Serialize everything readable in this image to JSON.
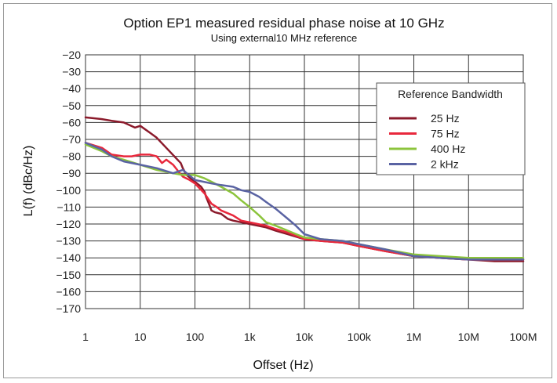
{
  "chart_data": {
    "type": "line",
    "title": "Option EP1 measured residual phase noise at 10 GHz",
    "subtitle": "Using external10 MHz reference",
    "xlabel": "Offset (Hz)",
    "ylabel": "L(f) (dBc/Hz)",
    "x_scale": "log",
    "xlim": [
      1,
      100000000
    ],
    "ylim": [
      -170,
      -20
    ],
    "grid": true,
    "legend_position": "top-right",
    "legend_title": "Reference Bandwidth",
    "x_ticks": [
      {
        "value": 1,
        "label": "1"
      },
      {
        "value": 10,
        "label": "10"
      },
      {
        "value": 100,
        "label": "100"
      },
      {
        "value": 1000,
        "label": "1k"
      },
      {
        "value": 10000,
        "label": "10k"
      },
      {
        "value": 100000,
        "label": "100k"
      },
      {
        "value": 1000000,
        "label": "1M"
      },
      {
        "value": 10000000,
        "label": "10M"
      },
      {
        "value": 100000000,
        "label": "100M"
      }
    ],
    "y_ticks": [
      {
        "value": -20,
        "label": "−20"
      },
      {
        "value": -30,
        "label": "−30"
      },
      {
        "value": -40,
        "label": "−40"
      },
      {
        "value": -50,
        "label": "−50"
      },
      {
        "value": -60,
        "label": "−60"
      },
      {
        "value": -70,
        "label": "−70"
      },
      {
        "value": -80,
        "label": "−80"
      },
      {
        "value": -90,
        "label": "−90"
      },
      {
        "value": -100,
        "label": "−100"
      },
      {
        "value": -110,
        "label": "−110"
      },
      {
        "value": -120,
        "label": "−120"
      },
      {
        "value": -130,
        "label": "−130"
      },
      {
        "value": -140,
        "label": "−140"
      },
      {
        "value": -150,
        "label": "−150"
      },
      {
        "value": -160,
        "label": "−160"
      },
      {
        "value": -170,
        "label": "−170"
      }
    ],
    "series": [
      {
        "name": "25 Hz",
        "color": "#8b1a2b",
        "points": [
          [
            1,
            -57
          ],
          [
            2,
            -58
          ],
          [
            3,
            -59
          ],
          [
            5,
            -60
          ],
          [
            8,
            -63
          ],
          [
            10,
            -62
          ],
          [
            15,
            -66
          ],
          [
            20,
            -69
          ],
          [
            30,
            -75
          ],
          [
            45,
            -81
          ],
          [
            55,
            -84
          ],
          [
            60,
            -87
          ],
          [
            70,
            -91
          ],
          [
            100,
            -95
          ],
          [
            130,
            -98
          ],
          [
            150,
            -101
          ],
          [
            160,
            -104
          ],
          [
            180,
            -108
          ],
          [
            200,
            -112
          ],
          [
            230,
            -113
          ],
          [
            300,
            -114
          ],
          [
            400,
            -117
          ],
          [
            500,
            -118
          ],
          [
            700,
            -119
          ],
          [
            1000,
            -120
          ],
          [
            2000,
            -122
          ],
          [
            3000,
            -124
          ],
          [
            5000,
            -126
          ],
          [
            10000,
            -129
          ],
          [
            20000,
            -130
          ],
          [
            50000,
            -131
          ],
          [
            100000,
            -133
          ],
          [
            300000,
            -136
          ],
          [
            1000000,
            -139
          ],
          [
            3000000,
            -140
          ],
          [
            10000000,
            -141
          ],
          [
            30000000,
            -142
          ],
          [
            100000000,
            -142
          ]
        ]
      },
      {
        "name": "75 Hz",
        "color": "#e8283c",
        "points": [
          [
            1,
            -72
          ],
          [
            2,
            -75
          ],
          [
            3,
            -79
          ],
          [
            5,
            -80
          ],
          [
            7,
            -80
          ],
          [
            10,
            -79
          ],
          [
            15,
            -79
          ],
          [
            20,
            -80
          ],
          [
            25,
            -84
          ],
          [
            30,
            -82
          ],
          [
            40,
            -85
          ],
          [
            50,
            -89
          ],
          [
            60,
            -92
          ],
          [
            80,
            -94
          ],
          [
            100,
            -96
          ],
          [
            150,
            -102
          ],
          [
            200,
            -108
          ],
          [
            250,
            -110
          ],
          [
            300,
            -112
          ],
          [
            500,
            -115
          ],
          [
            700,
            -118
          ],
          [
            1000,
            -119
          ],
          [
            2000,
            -121
          ],
          [
            3000,
            -123
          ],
          [
            5000,
            -125
          ],
          [
            10000,
            -129
          ],
          [
            20000,
            -130
          ],
          [
            50000,
            -131
          ],
          [
            100000,
            -133
          ],
          [
            300000,
            -136
          ],
          [
            1000000,
            -139
          ],
          [
            3000000,
            -140
          ],
          [
            10000000,
            -141
          ],
          [
            30000000,
            -141
          ],
          [
            100000000,
            -141
          ]
        ]
      },
      {
        "name": "400 Hz",
        "color": "#8cc43c",
        "points": [
          [
            1,
            -73
          ],
          [
            2,
            -77
          ],
          [
            3,
            -80
          ],
          [
            5,
            -82
          ],
          [
            10,
            -85
          ],
          [
            20,
            -88
          ],
          [
            40,
            -90
          ],
          [
            60,
            -91
          ],
          [
            100,
            -91
          ],
          [
            150,
            -93
          ],
          [
            200,
            -95
          ],
          [
            300,
            -98
          ],
          [
            500,
            -102
          ],
          [
            700,
            -106
          ],
          [
            1000,
            -110
          ],
          [
            1500,
            -115
          ],
          [
            2000,
            -119
          ],
          [
            3000,
            -121
          ],
          [
            5000,
            -124
          ],
          [
            10000,
            -128
          ],
          [
            20000,
            -129
          ],
          [
            50000,
            -130
          ],
          [
            100000,
            -132
          ],
          [
            300000,
            -135
          ],
          [
            1000000,
            -138
          ],
          [
            3000000,
            -139
          ],
          [
            10000000,
            -140
          ],
          [
            30000000,
            -140
          ],
          [
            100000000,
            -140
          ]
        ]
      },
      {
        "name": "2 kHz",
        "color": "#5a63a3",
        "points": [
          [
            1,
            -72
          ],
          [
            2,
            -76
          ],
          [
            3,
            -80
          ],
          [
            5,
            -83
          ],
          [
            10,
            -85
          ],
          [
            20,
            -87
          ],
          [
            40,
            -90
          ],
          [
            60,
            -88
          ],
          [
            100,
            -94
          ],
          [
            200,
            -96
          ],
          [
            300,
            -97
          ],
          [
            500,
            -98
          ],
          [
            700,
            -100
          ],
          [
            1000,
            -101
          ],
          [
            1500,
            -104
          ],
          [
            2000,
            -107
          ],
          [
            3000,
            -111
          ],
          [
            5000,
            -117
          ],
          [
            7000,
            -121
          ],
          [
            10000,
            -126
          ],
          [
            20000,
            -129
          ],
          [
            50000,
            -130
          ],
          [
            100000,
            -132
          ],
          [
            300000,
            -135
          ],
          [
            1000000,
            -139
          ],
          [
            3000000,
            -140
          ],
          [
            10000000,
            -141
          ],
          [
            30000000,
            -141
          ],
          [
            100000000,
            -141
          ]
        ]
      }
    ]
  }
}
